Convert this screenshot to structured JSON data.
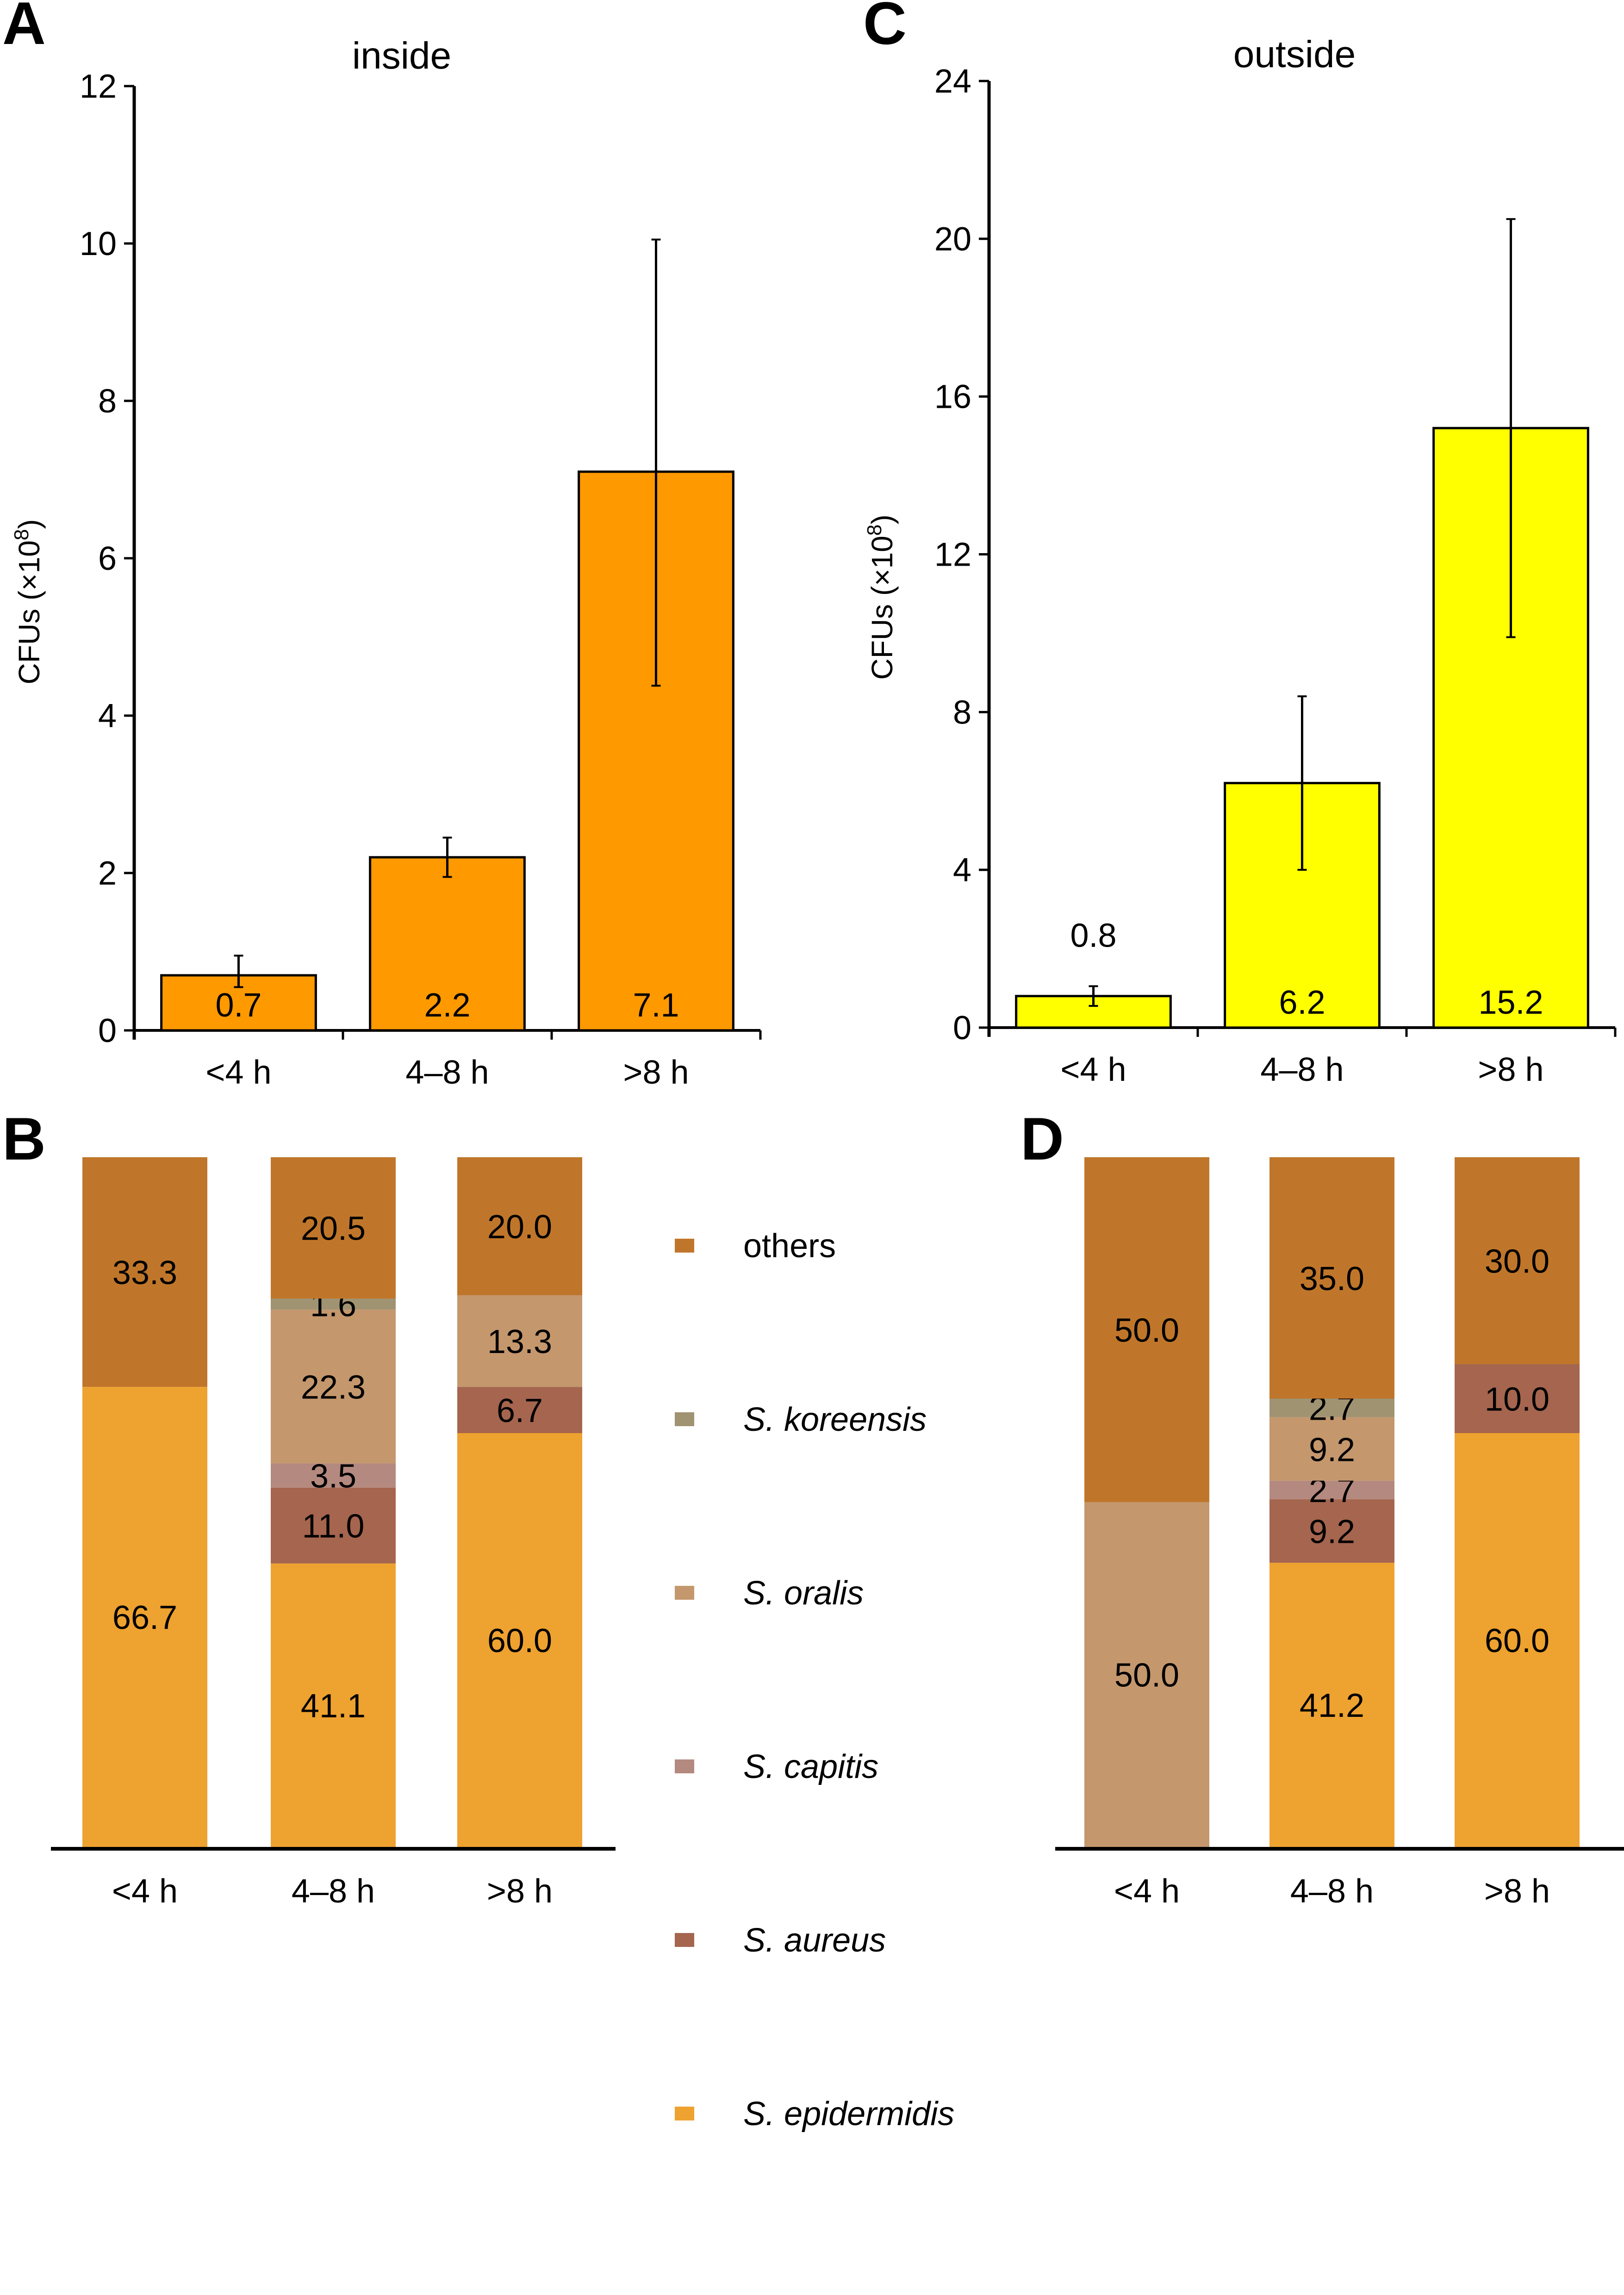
{
  "figure": {
    "panels": [
      "A",
      "B",
      "C",
      "D"
    ]
  },
  "chart_data": [
    {
      "panel": "A",
      "type": "bar",
      "title": "inside",
      "xlabel": "",
      "ylabel": "CFUs (×10⁸)",
      "ylabel_base": "CFUs (×10",
      "ylabel_sup": "8",
      "ylabel_close": ")",
      "ylim": [
        0,
        12
      ],
      "yticks": [
        0,
        2,
        4,
        6,
        8,
        10,
        12
      ],
      "categories": [
        "<4 h",
        "4–8 h",
        ">8 h"
      ],
      "values": [
        0.7,
        2.2,
        7.1
      ],
      "value_labels": [
        "0.7",
        "2.2",
        "7.1"
      ],
      "error_low": [
        0.55,
        1.95,
        4.38
      ],
      "error_high": [
        0.95,
        2.45,
        10.05
      ],
      "color": "#FF9900",
      "grid": false
    },
    {
      "panel": "C",
      "type": "bar",
      "title": "outside",
      "xlabel": "",
      "ylabel": "CFUs (×10⁸)",
      "ylabel_base": "CFUs (×10",
      "ylabel_sup": "8",
      "ylabel_close": ")",
      "ylim": [
        0,
        24
      ],
      "yticks": [
        0,
        4,
        8,
        12,
        16,
        20,
        24
      ],
      "categories": [
        "<4 h",
        "4–8 h",
        ">8 h"
      ],
      "values": [
        0.8,
        6.2,
        15.2
      ],
      "value_labels": [
        "0.8",
        "6.2",
        "15.2"
      ],
      "value_label_above": [
        true,
        false,
        false
      ],
      "error_low": [
        0.55,
        4.0,
        9.9
      ],
      "error_high": [
        1.05,
        8.4,
        20.5
      ],
      "color": "#FFFF00",
      "grid": false
    },
    {
      "panel": "B",
      "type": "bar",
      "stacked": true,
      "percent": true,
      "categories": [
        "<4 h",
        "4–8 h",
        ">8 h"
      ],
      "series": [
        {
          "name": "S. epidermidis",
          "values": [
            66.7,
            41.1,
            60.0
          ],
          "labels": [
            "66.7",
            "41.1",
            "60.0"
          ]
        },
        {
          "name": "S. aureus",
          "values": [
            0,
            11.0,
            6.7
          ],
          "labels": [
            "",
            "11.0",
            "6.7"
          ]
        },
        {
          "name": "S. capitis",
          "values": [
            0,
            3.5,
            0
          ],
          "labels": [
            "",
            "3.5",
            ""
          ]
        },
        {
          "name": "S. oralis",
          "values": [
            0,
            22.3,
            13.3
          ],
          "labels": [
            "",
            "22.3",
            "13.3"
          ]
        },
        {
          "name": "S. koreensis",
          "values": [
            0,
            1.6,
            0
          ],
          "labels": [
            "",
            "1.6",
            ""
          ]
        },
        {
          "name": "others",
          "values": [
            33.3,
            20.5,
            20.0
          ],
          "labels": [
            "33.3",
            "20.5",
            "20.0"
          ]
        }
      ],
      "ylim": [
        0,
        100
      ]
    },
    {
      "panel": "D",
      "type": "bar",
      "stacked": true,
      "percent": true,
      "categories": [
        "<4 h",
        "4–8 h",
        ">8 h"
      ],
      "series": [
        {
          "name": "S. epidermidis",
          "values": [
            0,
            41.2,
            60.0
          ],
          "labels": [
            "",
            "41.2",
            "60.0"
          ]
        },
        {
          "name": "S. aureus",
          "values": [
            0,
            9.2,
            10.0
          ],
          "labels": [
            "",
            "9.2",
            "10.0"
          ]
        },
        {
          "name": "S. capitis",
          "values": [
            0,
            2.7,
            0
          ],
          "labels": [
            "",
            "2.7",
            ""
          ]
        },
        {
          "name": "S. oralis",
          "values": [
            50.0,
            9.2,
            0
          ],
          "labels": [
            "50.0",
            "9.2",
            ""
          ]
        },
        {
          "name": "S. koreensis",
          "values": [
            0,
            2.7,
            0
          ],
          "labels": [
            "",
            "2.7",
            ""
          ]
        },
        {
          "name": "others",
          "values": [
            50.0,
            35.0,
            30.0
          ],
          "labels": [
            "50.0",
            "35.0",
            "30.0"
          ]
        }
      ],
      "ylim": [
        0,
        100
      ]
    }
  ],
  "legend": {
    "placement": "between B and D",
    "items": [
      {
        "label": "others",
        "italic": false,
        "color": "#C0762A"
      },
      {
        "label": "S. koreensis",
        "italic": true,
        "color": "#A09372"
      },
      {
        "label": "S. oralis",
        "italic": true,
        "color": "#C4976D"
      },
      {
        "label": "S. capitis",
        "italic": true,
        "color": "#B4897F"
      },
      {
        "label": "S. aureus",
        "italic": true,
        "color": "#A5654E"
      },
      {
        "label": "S. epidermidis",
        "italic": true,
        "color": "#EEA22F"
      }
    ]
  },
  "species_colors": {
    "others": "#C0762A",
    "S. koreensis": "#A09372",
    "S. oralis": "#C4976D",
    "S. capitis": "#B4897F",
    "S. aureus": "#A5654E",
    "S. epidermidis": "#EEA22F"
  }
}
